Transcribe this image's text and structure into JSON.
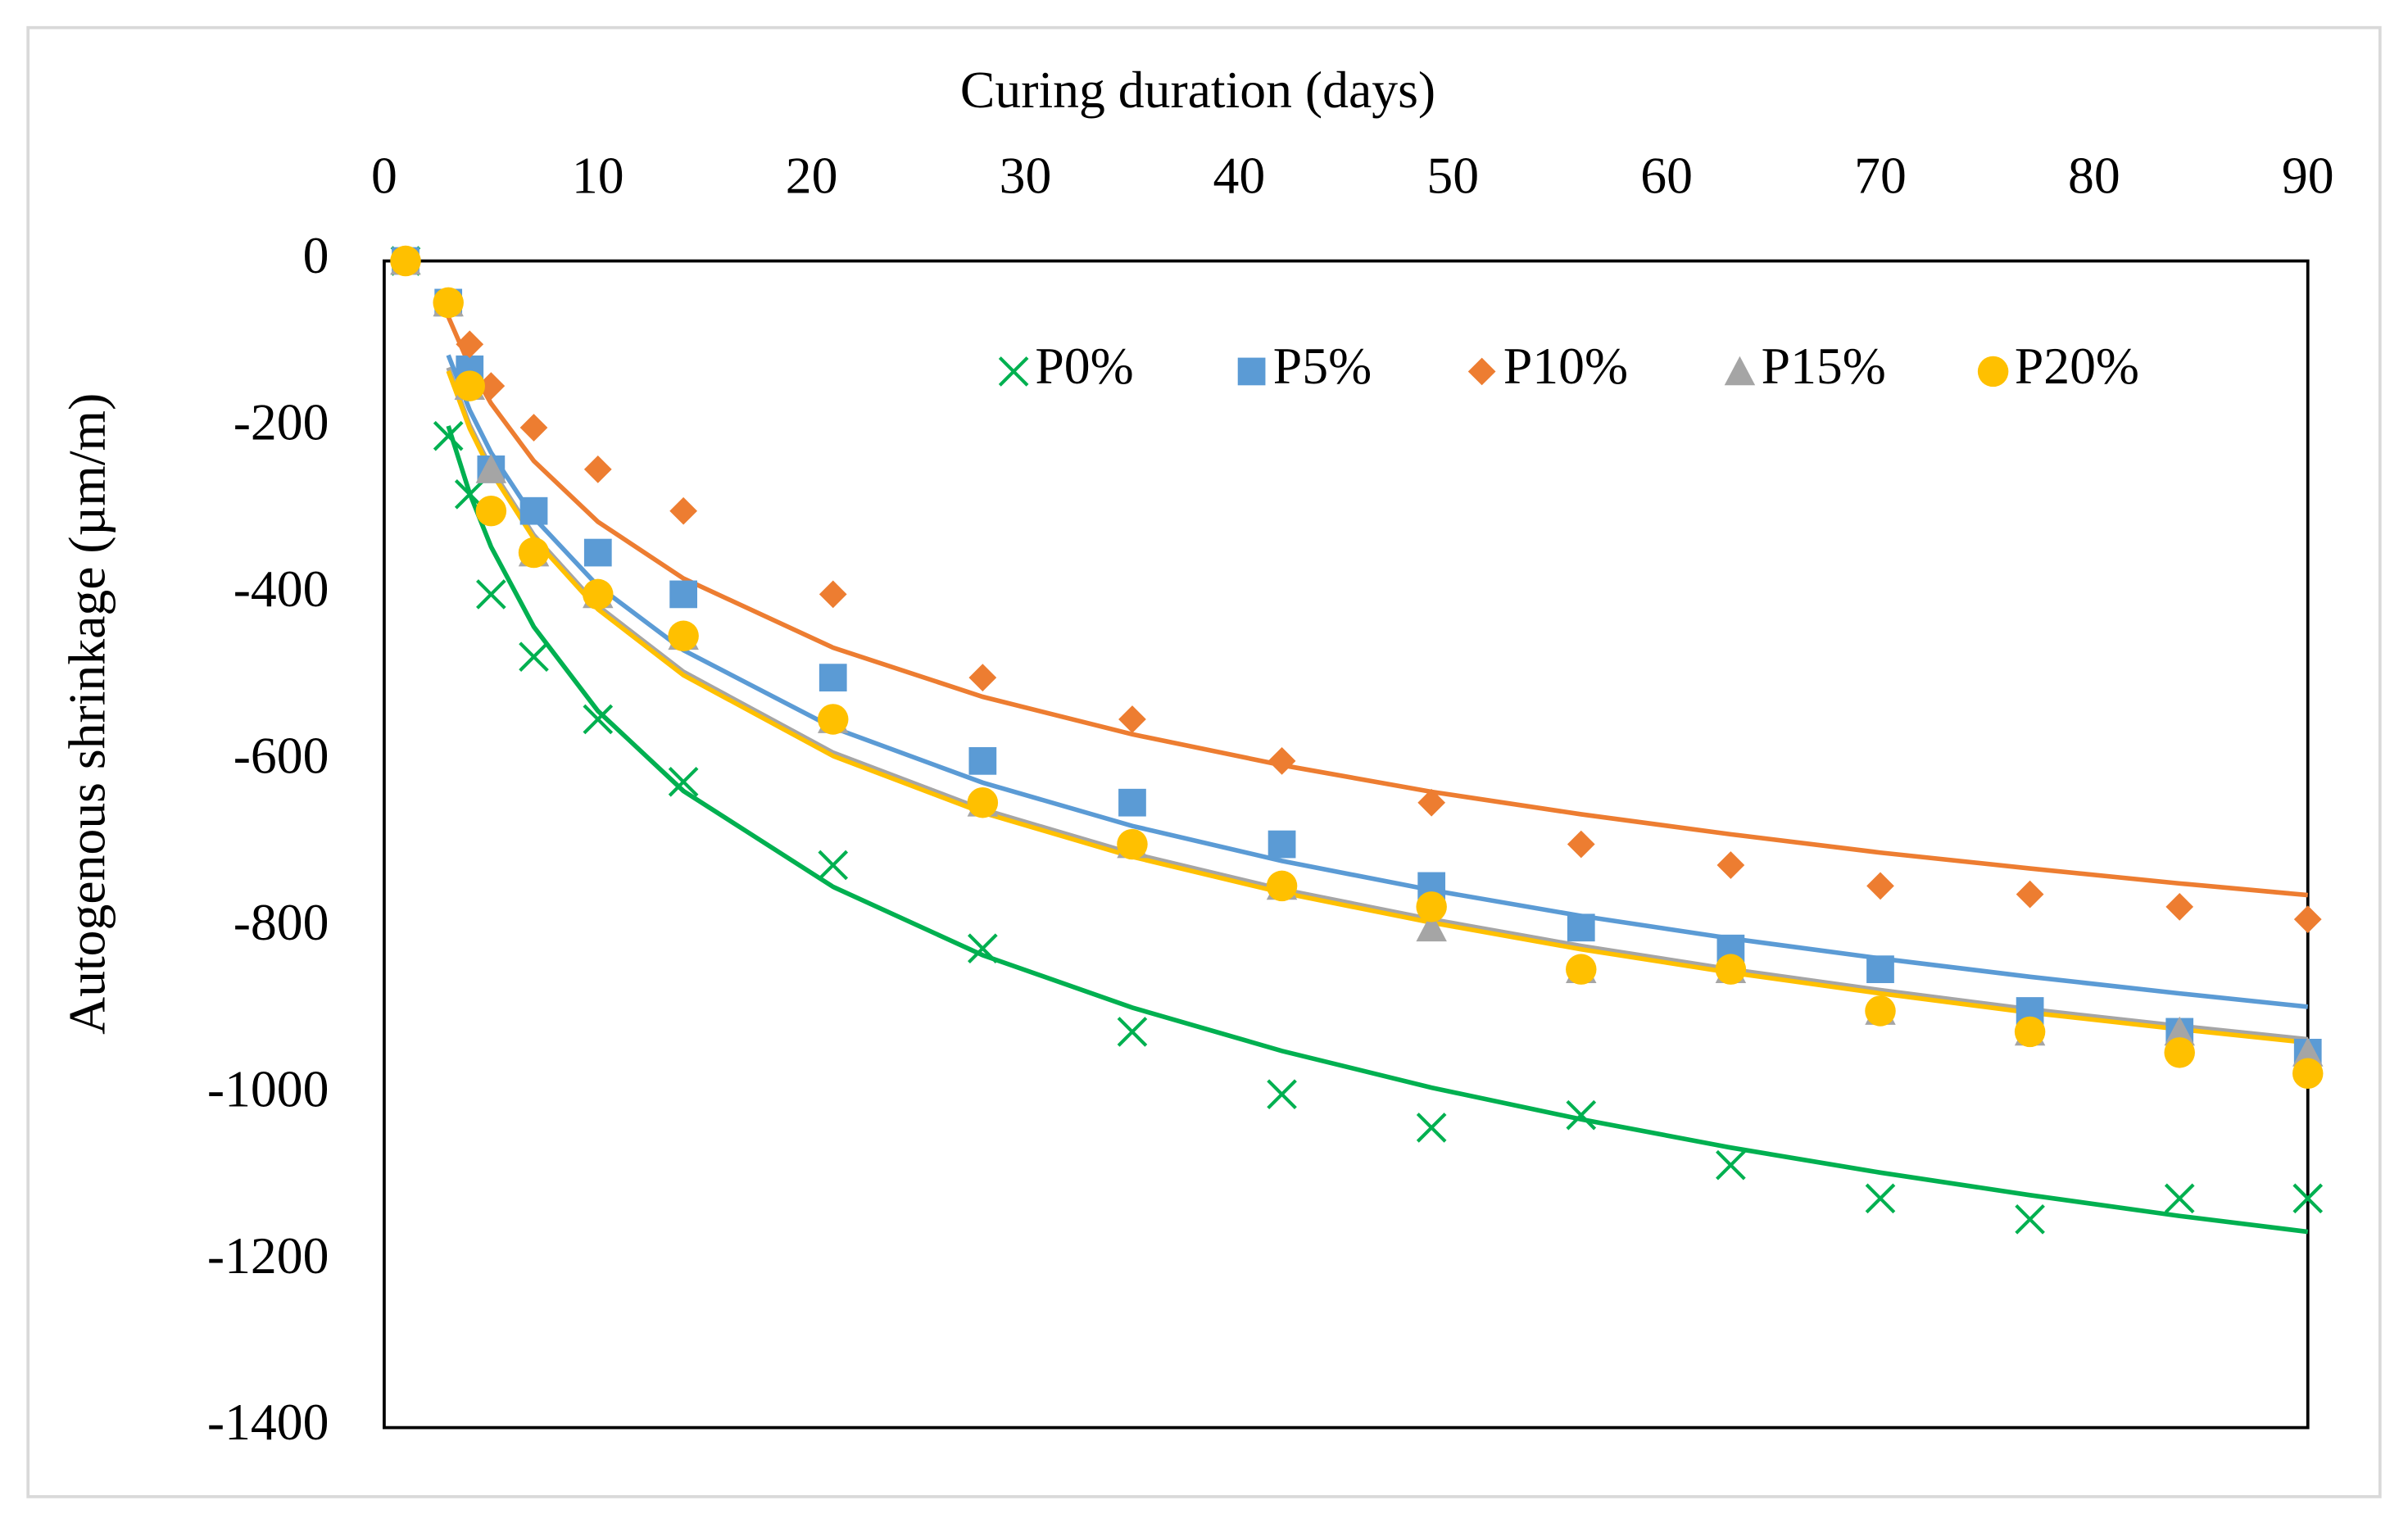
{
  "chart_data": {
    "type": "scatter",
    "x_label": "Curing duration (days)",
    "y_label": "Autogenous shrinkage  (µm/m)",
    "x": [
      1,
      3,
      4,
      5,
      7,
      10,
      14,
      21,
      28,
      35,
      42,
      49,
      56,
      63,
      70,
      77,
      84,
      90
    ],
    "xlim": [
      0,
      90
    ],
    "xticks": [
      0,
      10,
      20,
      30,
      40,
      50,
      60,
      70,
      80,
      90
    ],
    "ylim": [
      -1400,
      0
    ],
    "yticks": [
      0,
      -200,
      -400,
      -600,
      -800,
      -1000,
      -1200,
      -1400
    ],
    "x_axis_position": "top",
    "grid": false,
    "legend": "top",
    "series": [
      {
        "name": "P0%",
        "color": "#00b050",
        "marker": "x",
        "values": [
          0,
          -210,
          -280,
          -400,
          -475,
          -550,
          -625,
          -725,
          -825,
          -925,
          -1000,
          -1040,
          -1025,
          -1085,
          -1125,
          -1150,
          -1125,
          -1125
        ],
        "trend": [
          null,
          -198,
          -279,
          -343,
          -439,
          -540,
          -636,
          -751,
          -833,
          -896,
          -948,
          -992,
          -1030,
          -1064,
          -1094,
          -1121,
          -1146,
          -1165
        ]
      },
      {
        "name": "P5%",
        "color": "#5b9bd5",
        "marker": "square",
        "values": [
          0,
          -50,
          -130,
          -250,
          -300,
          -350,
          -400,
          -500,
          -600,
          -650,
          -700,
          -750,
          -800,
          -825,
          -850,
          -900,
          -925,
          -950
        ],
        "trend": [
          null,
          -113,
          -179,
          -230,
          -308,
          -390,
          -467,
          -560,
          -626,
          -678,
          -720,
          -755,
          -786,
          -813,
          -837,
          -859,
          -879,
          -895
        ]
      },
      {
        "name": "P10%",
        "color": "#ed7d31",
        "marker": "diamond",
        "values": [
          0,
          -50,
          -100,
          -150,
          -200,
          -250,
          -300,
          -400,
          -500,
          -550,
          -600,
          -650,
          -700,
          -725,
          -750,
          -760,
          -775,
          -790
        ],
        "trend": [
          null,
          -67,
          -126,
          -171,
          -240,
          -313,
          -381,
          -464,
          -523,
          -568,
          -605,
          -637,
          -664,
          -688,
          -710,
          -729,
          -747,
          -761
        ]
      },
      {
        "name": "P15%",
        "color": "#a5a5a5",
        "marker": "triangle",
        "values": [
          0,
          -50,
          -150,
          -250,
          -350,
          -400,
          -450,
          -550,
          -650,
          -700,
          -750,
          -800,
          -850,
          -850,
          -900,
          -925,
          -925,
          -950
        ],
        "trend": [
          null,
          -128,
          -197,
          -249,
          -329,
          -414,
          -493,
          -590,
          -658,
          -711,
          -754,
          -790,
          -822,
          -850,
          -875,
          -898,
          -918,
          -934
        ]
      },
      {
        "name": "P20%",
        "color": "#ffc000",
        "marker": "circle",
        "values": [
          0,
          -50,
          -150,
          -300,
          -350,
          -400,
          -450,
          -550,
          -650,
          -700,
          -750,
          -775,
          -850,
          -850,
          -900,
          -925,
          -950,
          -975
        ],
        "trend": [
          null,
          -132,
          -201,
          -253,
          -333,
          -418,
          -497,
          -594,
          -662,
          -715,
          -758,
          -794,
          -826,
          -854,
          -879,
          -902,
          -922,
          -938
        ]
      }
    ]
  }
}
